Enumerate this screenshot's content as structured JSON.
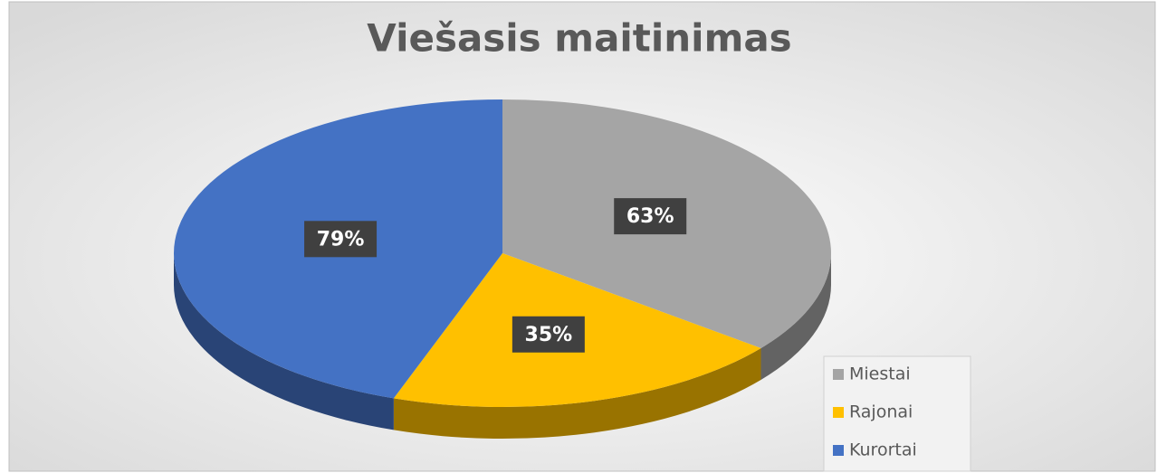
{
  "chart_data": {
    "type": "pie",
    "title": "Viešasis maitinimas",
    "categories": [
      "Miestai",
      "Rajonai",
      "Kurortai"
    ],
    "values": [
      63,
      35,
      79
    ],
    "value_labels": [
      "63%",
      "35%",
      "79%"
    ],
    "colors": [
      "#a5a5a5",
      "#ffc000",
      "#4472c4"
    ],
    "legend": "bottom-right"
  }
}
